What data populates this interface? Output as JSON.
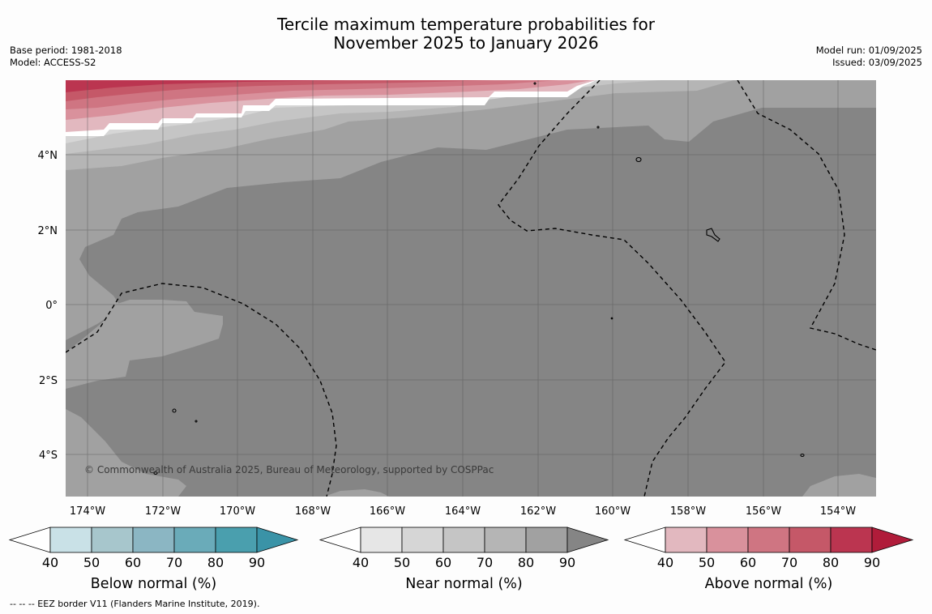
{
  "title": {
    "line1": "Tercile maximum temperature probabilities for",
    "line2": "November 2025 to January 2026"
  },
  "meta_left": {
    "base_period": "Base period: 1981-2018",
    "model": "Model: ACCESS-S2"
  },
  "meta_right": {
    "model_run": "Model run: 01/09/2025",
    "issued": "Issued: 03/09/2025"
  },
  "map": {
    "lat_labels": [
      "4°N",
      "2°N",
      "0°",
      "2°S",
      "4°S"
    ],
    "lon_labels": [
      "174°W",
      "172°W",
      "170°W",
      "168°W",
      "166°W",
      "164°W",
      "162°W",
      "160°W",
      "158°W",
      "156°W",
      "154°W"
    ],
    "copyright": "© Commonwealth of Australia 2025, Bureau of Meteorology, supported by COSPPac"
  },
  "colorbars": [
    {
      "title": "Below normal (%)",
      "ticks": [
        "40",
        "50",
        "60",
        "70",
        "80",
        "90"
      ],
      "colors": [
        "#ffffff",
        "#c9e1e7",
        "#a7c6cc",
        "#8bb6c3",
        "#6aabb9",
        "#4a9fae",
        "#3a93a7"
      ]
    },
    {
      "title": "Near normal (%)",
      "ticks": [
        "40",
        "50",
        "60",
        "70",
        "80",
        "90"
      ],
      "colors": [
        "#ffffff",
        "#e6e6e6",
        "#d6d6d6",
        "#c5c5c5",
        "#b5b5b5",
        "#a1a1a1",
        "#858585"
      ]
    },
    {
      "title": "Above normal (%)",
      "ticks": [
        "40",
        "50",
        "60",
        "70",
        "80",
        "90"
      ],
      "colors": [
        "#ffffff",
        "#e2b8bf",
        "#d9919c",
        "#cf7582",
        "#c55868",
        "#bb3550",
        "#b01c3a"
      ]
    }
  ],
  "footer": "--  --  -- EEZ border V11 (Flanders Marine Institute, 2019)."
}
